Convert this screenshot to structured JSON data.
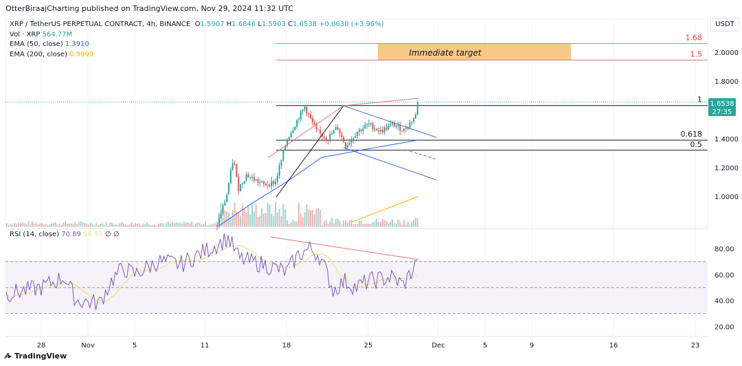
{
  "header": {
    "publisher": "OtterBiraajCharting published on TradingView.com, Nov 29, 2024 11:32 UTC"
  },
  "legend": {
    "symbol": "XRP / TetherUS PERPETUAL CONTRACT, 4h, BINANCE",
    "o_label": "O",
    "o": "1.5907",
    "h_label": "H",
    "h": "1.6846",
    "l_label": "L",
    "l": "1.5903",
    "c_label": "C",
    "c": "1.6538",
    "change": "+0.0630 (+3.96%)",
    "vol_label": "Vol · XRP",
    "vol": "564.77M",
    "ema50_label": "EMA (50, close)",
    "ema50": "1.3910",
    "ema200_label": "EMA (200, close)",
    "ema200": "0.9999"
  },
  "rsi_legend": {
    "label": "RSI (14, close)",
    "rsi": "70.89",
    "ma": "58.57",
    "v1": "∅",
    "v2": "∅"
  },
  "currency": "USDT",
  "last_price": {
    "price": "1.6538",
    "countdown": "27:35"
  },
  "annotations": {
    "target_text": "Immediate target",
    "fib_1": "1",
    "fib_0618": "0.618",
    "fib_05": "0.5",
    "t168": "1.68",
    "t15": "1.5"
  },
  "branding": "TradingView",
  "colors": {
    "up": "#26a69a",
    "down": "#ef5350",
    "ema50": "#2962ff",
    "ema200": "#f7b500",
    "rsi": "#7e57c2",
    "target": "#f8c986",
    "level": "#e57373"
  },
  "chart_data": [
    {
      "type": "candlestick",
      "title": "XRP / TetherUS PERPETUAL CONTRACT, 4h, BINANCE",
      "x_ticks": [
        "28",
        "Nov",
        "5",
        "11",
        "18",
        "25",
        "Dec",
        "5",
        "9",
        "16",
        "23"
      ],
      "x_tick_days": [
        0,
        4,
        8,
        14,
        21,
        28,
        34,
        38,
        42,
        49,
        56
      ],
      "y_ticks": [
        "2.0000",
        "1.8000",
        "1.4000",
        "1.2000",
        "1.0000"
      ],
      "y_tick_values": [
        2.0,
        1.8,
        1.4,
        1.2,
        1.0
      ],
      "ylim": [
        0.78,
        2.1
      ],
      "price_path_day_price": [
        [
          15,
          0.8
        ],
        [
          15.8,
          1.0
        ],
        [
          16.4,
          1.27
        ],
        [
          16.8,
          1.05
        ],
        [
          17.5,
          1.15
        ],
        [
          19,
          1.08
        ],
        [
          20,
          1.1
        ],
        [
          21,
          1.4
        ],
        [
          22,
          1.55
        ],
        [
          22.5,
          1.62
        ],
        [
          23.5,
          1.45
        ],
        [
          24.5,
          1.4
        ],
        [
          25.3,
          1.48
        ],
        [
          26,
          1.35
        ],
        [
          27,
          1.45
        ],
        [
          28,
          1.5
        ],
        [
          29,
          1.45
        ],
        [
          30,
          1.5
        ],
        [
          31,
          1.46
        ],
        [
          32,
          1.56
        ],
        [
          32.3,
          1.6538
        ]
      ],
      "ema50_path": [
        [
          15.3,
          0.8
        ],
        [
          18,
          0.95
        ],
        [
          21,
          1.1
        ],
        [
          24,
          1.27
        ],
        [
          28,
          1.33
        ],
        [
          32.3,
          1.391
        ]
      ],
      "ema200_path": [
        [
          26.5,
          0.82
        ],
        [
          32.3,
          0.9999
        ]
      ],
      "levels": [
        {
          "label": "1.68",
          "price": 2.06
        },
        {
          "label": "1.5",
          "price": 1.945
        },
        {
          "label": "1",
          "price": 1.63
        },
        {
          "label": "0.618",
          "price": 1.39
        },
        {
          "label": "0.5",
          "price": 1.32
        }
      ]
    },
    {
      "type": "line",
      "title": "RSI (14, close)",
      "y_ticks": [
        "80.00",
        "60.00",
        "40.00",
        "20.00"
      ],
      "y_tick_values": [
        80,
        60,
        40,
        20
      ],
      "bands": [
        70,
        50,
        30
      ],
      "rsi_path": [
        [
          -3,
          45
        ],
        [
          0,
          50
        ],
        [
          2,
          58
        ],
        [
          3,
          40
        ],
        [
          5,
          38
        ],
        [
          6,
          55
        ],
        [
          7,
          65
        ],
        [
          8,
          60
        ],
        [
          10,
          70
        ],
        [
          12,
          68
        ],
        [
          14,
          78
        ],
        [
          16,
          88
        ],
        [
          17,
          72
        ],
        [
          19,
          68
        ],
        [
          21,
          62
        ],
        [
          22,
          75
        ],
        [
          23,
          80
        ],
        [
          23.8,
          75
        ],
        [
          24.5,
          60
        ],
        [
          25,
          48
        ],
        [
          26,
          55
        ],
        [
          27,
          50
        ],
        [
          28,
          55
        ],
        [
          30,
          58
        ],
        [
          31,
          52
        ],
        [
          32.3,
          70.9
        ]
      ]
    }
  ]
}
